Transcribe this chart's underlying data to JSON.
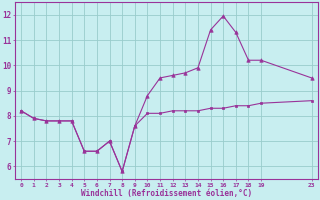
{
  "xlabel": "Windchill (Refroidissement éolien,°C)",
  "bg_color": "#c8eef0",
  "line_color": "#993399",
  "grid_color": "#99cccc",
  "xlim": [
    -0.5,
    23.5
  ],
  "ylim": [
    5.5,
    12.5
  ],
  "yticks": [
    6,
    7,
    8,
    9,
    10,
    11,
    12
  ],
  "xticks": [
    0,
    1,
    2,
    3,
    4,
    5,
    6,
    7,
    8,
    9,
    10,
    11,
    12,
    13,
    14,
    15,
    16,
    17,
    18,
    19,
    23
  ],
  "xtick_labels": [
    "0",
    "1",
    "2",
    "3",
    "4",
    "5",
    "6",
    "7",
    "8",
    "9",
    "10",
    "11",
    "12",
    "13",
    "14",
    "15",
    "16",
    "17",
    "18",
    "19",
    "23"
  ],
  "line1_x": [
    0,
    1,
    2,
    3,
    4,
    5,
    6,
    7,
    8,
    9,
    10,
    11,
    12,
    13,
    14,
    15,
    16,
    17,
    18,
    19,
    23
  ],
  "line1_y": [
    8.2,
    7.9,
    7.8,
    7.8,
    7.8,
    6.6,
    6.6,
    7.0,
    5.8,
    7.6,
    8.1,
    8.1,
    8.2,
    8.2,
    8.2,
    8.3,
    8.3,
    8.4,
    8.4,
    8.5,
    8.6
  ],
  "line2_x": [
    0,
    1,
    2,
    3,
    4,
    5,
    6,
    7,
    8,
    9,
    10,
    11,
    12,
    13,
    14,
    15,
    16,
    17,
    18,
    19,
    23
  ],
  "line2_y": [
    8.2,
    7.9,
    7.8,
    7.8,
    7.8,
    6.6,
    6.6,
    7.0,
    5.8,
    7.6,
    8.8,
    9.5,
    9.6,
    9.7,
    9.9,
    11.4,
    11.95,
    11.3,
    10.2,
    10.2,
    9.5
  ]
}
